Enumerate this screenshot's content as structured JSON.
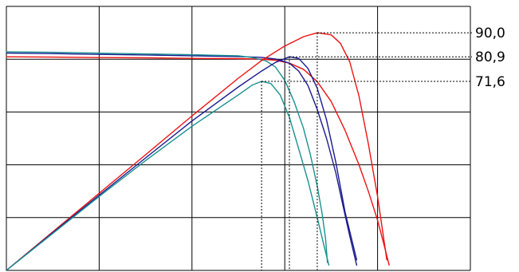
{
  "chart_data": {
    "type": "line",
    "title": "",
    "xlabel": "",
    "ylabel": "",
    "grid": true,
    "xlim": [
      0,
      100
    ],
    "ylim": [
      0,
      100
    ],
    "colors": {
      "red": "#ee1111",
      "blue": "#1a1a90",
      "teal": "#1a9090",
      "grid": "#000000",
      "guide": "#000000"
    },
    "series": [
      {
        "kind": "current",
        "color": "red",
        "points": [
          [
            0,
            80.9
          ],
          [
            10,
            80.8
          ],
          [
            20,
            80.6
          ],
          [
            30,
            80.5
          ],
          [
            40,
            80.3
          ],
          [
            50,
            80.2
          ],
          [
            55,
            80.0
          ],
          [
            58,
            79.6
          ],
          [
            61,
            78.5
          ],
          [
            64,
            76.2
          ],
          [
            67,
            71.5
          ],
          [
            70,
            64
          ],
          [
            73,
            53
          ],
          [
            76,
            40
          ],
          [
            78,
            30
          ],
          [
            80,
            19
          ],
          [
            81.5,
            9
          ],
          [
            82.5,
            2
          ]
        ]
      },
      {
        "kind": "current",
        "color": "blue",
        "points": [
          [
            0,
            82.3
          ],
          [
            10,
            82.1
          ],
          [
            20,
            81.8
          ],
          [
            30,
            81.6
          ],
          [
            40,
            81.3
          ],
          [
            50,
            81.0
          ],
          [
            55,
            80.7
          ],
          [
            58,
            80.1
          ],
          [
            61,
            78.5
          ],
          [
            63,
            75.5
          ],
          [
            65,
            70
          ],
          [
            67,
            61
          ],
          [
            69,
            50
          ],
          [
            71,
            37
          ],
          [
            72.5,
            25
          ],
          [
            74,
            13
          ],
          [
            75.5,
            2
          ]
        ]
      },
      {
        "kind": "current",
        "color": "teal",
        "points": [
          [
            0,
            82.8
          ],
          [
            10,
            82.6
          ],
          [
            20,
            82.3
          ],
          [
            30,
            82.0
          ],
          [
            40,
            81.7
          ],
          [
            50,
            81.3
          ],
          [
            53,
            80.6
          ],
          [
            56,
            79.3
          ],
          [
            58,
            77
          ],
          [
            60,
            72
          ],
          [
            62,
            64
          ],
          [
            64,
            54
          ],
          [
            65.5,
            44
          ],
          [
            67,
            32
          ],
          [
            68,
            22
          ],
          [
            68.8,
            12
          ],
          [
            69.2,
            3
          ]
        ]
      },
      {
        "kind": "power",
        "color": "red",
        "points": [
          [
            0,
            0
          ],
          [
            10,
            14.6
          ],
          [
            20,
            29.2
          ],
          [
            30,
            43.8
          ],
          [
            40,
            58.5
          ],
          [
            50,
            72.8
          ],
          [
            55,
            79.5
          ],
          [
            60,
            85
          ],
          [
            64,
            88.5
          ],
          [
            67,
            90.0
          ],
          [
            70,
            89.2
          ],
          [
            72,
            86
          ],
          [
            74,
            79
          ],
          [
            76,
            66
          ],
          [
            78,
            48
          ],
          [
            80,
            28
          ],
          [
            82,
            4
          ]
        ]
      },
      {
        "kind": "power",
        "color": "blue",
        "points": [
          [
            0,
            0
          ],
          [
            10,
            14.3
          ],
          [
            20,
            28.5
          ],
          [
            30,
            42.6
          ],
          [
            40,
            56.6
          ],
          [
            50,
            69.5
          ],
          [
            55,
            75.5
          ],
          [
            58,
            78.8
          ],
          [
            61,
            80.9
          ],
          [
            63,
            80.3
          ],
          [
            65,
            76.5
          ],
          [
            67,
            69
          ],
          [
            69,
            57
          ],
          [
            71,
            41
          ],
          [
            73,
            22
          ],
          [
            75.5,
            4
          ]
        ]
      },
      {
        "kind": "power",
        "color": "teal",
        "points": [
          [
            0,
            0
          ],
          [
            10,
            14.0
          ],
          [
            20,
            28.0
          ],
          [
            30,
            41.6
          ],
          [
            40,
            54.6
          ],
          [
            50,
            66.5
          ],
          [
            53,
            70.2
          ],
          [
            55,
            71.6
          ],
          [
            57,
            70.8
          ],
          [
            59,
            66.5
          ],
          [
            61,
            58
          ],
          [
            63,
            46
          ],
          [
            65,
            34
          ],
          [
            67,
            20
          ],
          [
            68.5,
            9
          ],
          [
            69.5,
            2
          ]
        ]
      }
    ],
    "peaks": [
      {
        "x": 67,
        "y": 90.0,
        "label": "90,0"
      },
      {
        "x": 61,
        "y": 80.9,
        "label": "80,9"
      },
      {
        "x": 55,
        "y": 71.6,
        "label": "71,6"
      }
    ]
  }
}
